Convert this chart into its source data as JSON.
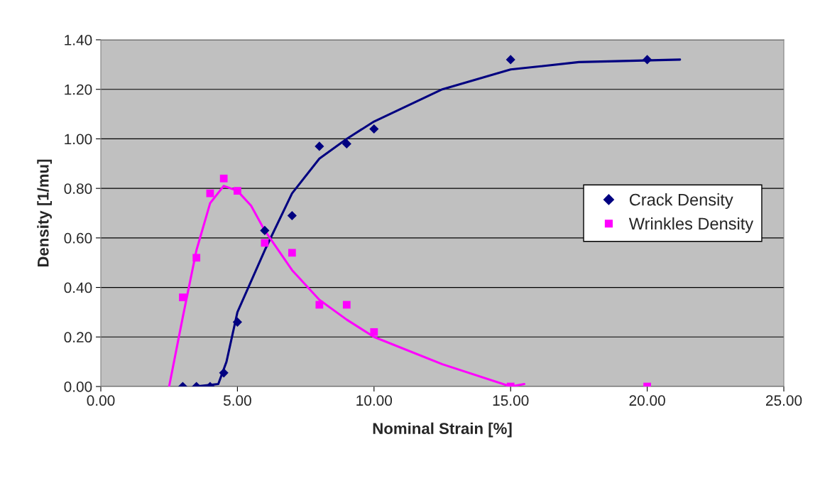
{
  "chart_data": {
    "type": "scatter",
    "xlabel": "Nominal Strain [%]",
    "ylabel": "Density [1/mu]",
    "xlim": [
      0,
      25
    ],
    "ylim": [
      0,
      1.4
    ],
    "xticks": [
      {
        "value": 0,
        "label": "0.00"
      },
      {
        "value": 5,
        "label": "5.00"
      },
      {
        "value": 10,
        "label": "10.00"
      },
      {
        "value": 15,
        "label": "15.00"
      },
      {
        "value": 20,
        "label": "20.00"
      },
      {
        "value": 25,
        "label": "25.00"
      }
    ],
    "yticks": [
      {
        "value": 0,
        "label": "0.00"
      },
      {
        "value": 0.2,
        "label": "0.20"
      },
      {
        "value": 0.4,
        "label": "0.40"
      },
      {
        "value": 0.6,
        "label": "0.60"
      },
      {
        "value": 0.8,
        "label": "0.80"
      },
      {
        "value": 1.0,
        "label": "1.00"
      },
      {
        "value": 1.2,
        "label": "1.20"
      },
      {
        "value": 1.4,
        "label": "1.40"
      }
    ],
    "grid": "y",
    "legend": "right",
    "series": [
      {
        "type": "line",
        "color": "#000080",
        "marker": "none",
        "line_style": "solid",
        "x": [
          3.45,
          4.3,
          4.6,
          5,
          6,
          7,
          8,
          9,
          10,
          12.5,
          15,
          17.5,
          21.2
        ],
        "values": [
          0,
          0.01,
          0.1,
          0.3,
          0.55,
          0.78,
          0.92,
          1.0,
          1.07,
          1.2,
          1.28,
          1.31,
          1.32
        ]
      },
      {
        "type": "line",
        "color": "#ff00ff",
        "marker": "none",
        "line_style": "solid",
        "x": [
          2.5,
          3,
          3.5,
          4,
          4.5,
          5,
          5.5,
          6,
          7,
          8,
          9,
          10,
          12.5,
          15,
          15.5
        ],
        "values": [
          0,
          0.28,
          0.55,
          0.74,
          0.81,
          0.79,
          0.73,
          0.63,
          0.47,
          0.35,
          0.27,
          0.2,
          0.09,
          0,
          0.01
        ]
      },
      {
        "name": "Crack Density",
        "color": "#000080",
        "marker": "diamond",
        "x": [
          3,
          3.5,
          4,
          4.5,
          5,
          6,
          7,
          8,
          9,
          10,
          15,
          20
        ],
        "values": [
          0,
          0,
          0,
          0.055,
          0.26,
          0.63,
          0.69,
          0.97,
          0.98,
          1.04,
          1.32,
          1.32
        ]
      },
      {
        "name": "Wrinkles Density",
        "color": "#ff00ff",
        "marker": "square",
        "x": [
          3,
          3.5,
          4,
          4.5,
          5,
          6,
          7,
          8,
          9,
          10,
          15,
          20
        ],
        "values": [
          0.36,
          0.52,
          0.78,
          0.84,
          0.79,
          0.58,
          0.54,
          0.33,
          0.33,
          0.22,
          0,
          0
        ]
      }
    ]
  }
}
